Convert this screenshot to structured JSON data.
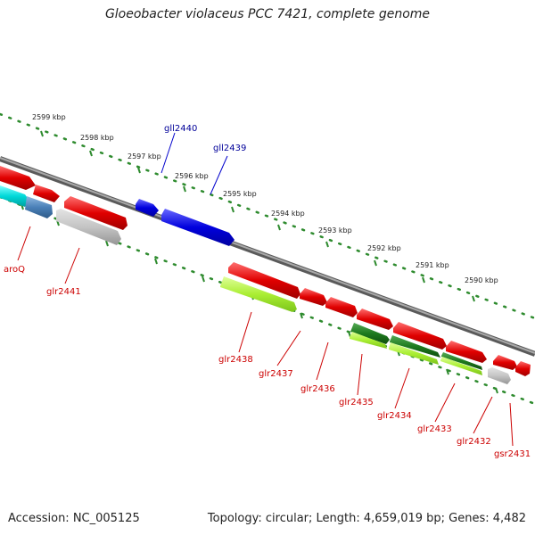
{
  "title": "Gloeobacter violaceus PCC 7421, complete genome",
  "footer": {
    "accession": "Accession: NC_005125",
    "summary": "Topology: circular; Length: 4,659,019 bp; Genes: 4,482"
  },
  "scale_ticks": [
    "2599 kbp",
    "2598 kbp",
    "2597 kbp",
    "2596 kbp",
    "2595 kbp",
    "2594 kbp",
    "2593 kbp",
    "2592 kbp",
    "2591 kbp",
    "2590 kbp"
  ],
  "genes_top": [
    "gll2440",
    "gll2439"
  ],
  "genes_bottom": [
    "aroQ",
    "glr2441",
    "glr2438",
    "glr2437",
    "glr2436",
    "glr2435",
    "glr2434",
    "glr2433",
    "glr2432",
    "gsr2431"
  ],
  "colors": {
    "forward": "#e00000",
    "reverse": "#0000dd",
    "label_forward": "#cc0000",
    "label_reverse": "#000099",
    "backbone": "#808080",
    "ruler_dots": "#2e8b2e"
  }
}
